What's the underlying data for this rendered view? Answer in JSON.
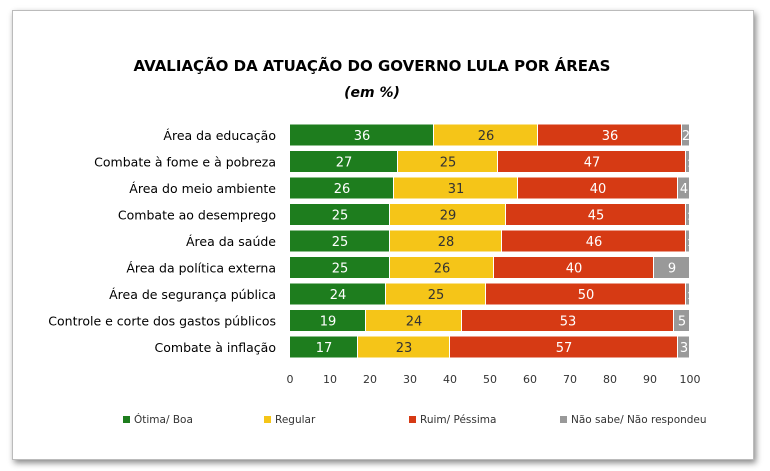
{
  "chart_data": {
    "type": "bar",
    "orientation": "horizontal",
    "stacked": true,
    "title": "AVALIAÇÃO DA ATUAÇÃO DO GOVERNO LULA POR ÁREAS",
    "subtitle": "(em %)",
    "categories": [
      "Área da educação",
      "Combate à fome e à pobreza",
      "Área do meio ambiente",
      "Combate ao desemprego",
      "Área da saúde",
      "Área da política externa",
      "Área de segurança pública",
      "Controle e corte dos gastos públicos",
      "Combate à inflação"
    ],
    "series": [
      {
        "name": "Ótima/ Boa",
        "color": "#1e7d1e",
        "values": [
          36,
          27,
          26,
          25,
          25,
          25,
          24,
          19,
          17
        ]
      },
      {
        "name": "Regular",
        "color": "#f5c518",
        "values": [
          26,
          25,
          31,
          29,
          28,
          26,
          25,
          24,
          23
        ]
      },
      {
        "name": "Ruim/ Péssima",
        "color": "#d63a14",
        "values": [
          36,
          47,
          40,
          45,
          46,
          40,
          50,
          53,
          57
        ]
      },
      {
        "name": "Não sabe/ Não respondeu",
        "color": "#999999",
        "values": [
          2,
          1,
          4,
          1,
          1,
          9,
          1,
          5,
          3
        ]
      }
    ],
    "xlim": [
      0,
      100
    ],
    "xticks": [
      0,
      10,
      20,
      30,
      40,
      50,
      60,
      70,
      80,
      90,
      100
    ],
    "grid": false,
    "legend": "bottom"
  }
}
